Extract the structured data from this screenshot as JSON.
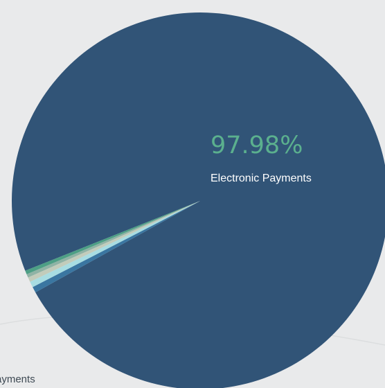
{
  "background_text": {
    "partial_label": "ayments"
  },
  "colors": {
    "background": "#e9eaeb",
    "curve": "#dcdedf",
    "highlight_value": "#5bb08e",
    "highlight_name": "#ffffff"
  },
  "chart_data": {
    "type": "pie",
    "slices": [
      {
        "name": "Electronic Payments",
        "value": 97.98,
        "color": "#315477"
      },
      {
        "value": 0.5,
        "color": "#3a76a1"
      },
      {
        "value": 0.5,
        "color": "#a8dde2"
      },
      {
        "value": 0.4,
        "color": "#c2ccbb"
      },
      {
        "value": 0.3,
        "color": "#8fb3a5"
      },
      {
        "value": 0.32,
        "color": "#4d9f85"
      }
    ],
    "highlight": {
      "value_label": "97.98%",
      "name_label": "Electronic Payments"
    }
  }
}
